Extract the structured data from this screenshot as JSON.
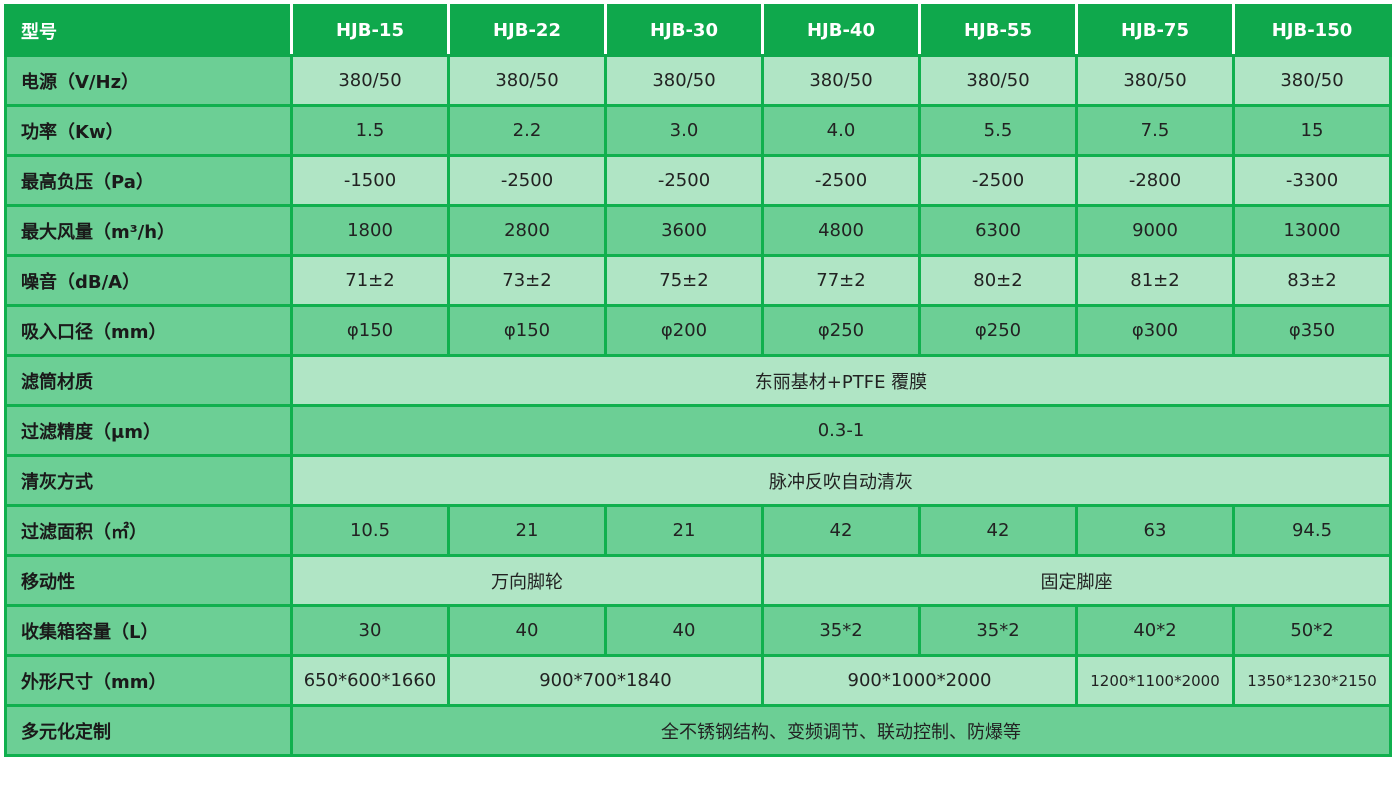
{
  "colors": {
    "header": "#0fa84c",
    "label": "#6ccf95",
    "light": "#b0e5c5",
    "dark": "#6ccf95",
    "grid": "#10b04e"
  },
  "header": {
    "label": "型号",
    "models": [
      "HJB-15",
      "HJB-22",
      "HJB-30",
      "HJB-40",
      "HJB-55",
      "HJB-75",
      "HJB-150"
    ]
  },
  "rows": [
    {
      "label": "电源（V/Hz）",
      "cells": [
        {
          "v": "380/50"
        },
        {
          "v": "380/50"
        },
        {
          "v": "380/50"
        },
        {
          "v": "380/50"
        },
        {
          "v": "380/50"
        },
        {
          "v": "380/50"
        },
        {
          "v": "380/50"
        }
      ]
    },
    {
      "label": "功率（Kw）",
      "cells": [
        {
          "v": "1.5"
        },
        {
          "v": "2.2"
        },
        {
          "v": "3.0"
        },
        {
          "v": "4.0"
        },
        {
          "v": "5.5"
        },
        {
          "v": "7.5"
        },
        {
          "v": "15"
        }
      ]
    },
    {
      "label": "最高负压（Pa）",
      "cells": [
        {
          "v": "-1500"
        },
        {
          "v": "-2500"
        },
        {
          "v": "-2500"
        },
        {
          "v": "-2500"
        },
        {
          "v": "-2500"
        },
        {
          "v": "-2800"
        },
        {
          "v": "-3300"
        }
      ]
    },
    {
      "label": "最大风量（m³/h）",
      "cells": [
        {
          "v": "1800"
        },
        {
          "v": "2800"
        },
        {
          "v": "3600"
        },
        {
          "v": "4800"
        },
        {
          "v": "6300"
        },
        {
          "v": "9000"
        },
        {
          "v": "13000"
        }
      ]
    },
    {
      "label": "噪音（dB/A）",
      "cells": [
        {
          "v": "71±2"
        },
        {
          "v": "73±2"
        },
        {
          "v": "75±2"
        },
        {
          "v": "77±2"
        },
        {
          "v": "80±2"
        },
        {
          "v": "81±2"
        },
        {
          "v": "83±2"
        }
      ]
    },
    {
      "label": "吸入口径（mm）",
      "cells": [
        {
          "v": "φ150"
        },
        {
          "v": "φ150"
        },
        {
          "v": "φ200"
        },
        {
          "v": "φ250"
        },
        {
          "v": "φ250"
        },
        {
          "v": "φ300"
        },
        {
          "v": "φ350"
        }
      ]
    },
    {
      "label": "滤筒材质",
      "cells": [
        {
          "v": "东丽基材+PTFE 覆膜",
          "span": 7
        }
      ]
    },
    {
      "label": "过滤精度（μm）",
      "cells": [
        {
          "v": "0.3-1",
          "span": 7
        }
      ]
    },
    {
      "label": "清灰方式",
      "cells": [
        {
          "v": "脉冲反吹自动清灰",
          "span": 7
        }
      ]
    },
    {
      "label": "过滤面积（㎡）",
      "cells": [
        {
          "v": "10.5"
        },
        {
          "v": "21"
        },
        {
          "v": "21"
        },
        {
          "v": "42"
        },
        {
          "v": "42"
        },
        {
          "v": "63"
        },
        {
          "v": "94.5"
        }
      ]
    },
    {
      "label": "移动性",
      "cells": [
        {
          "v": "万向脚轮",
          "span": 3
        },
        {
          "v": "固定脚座",
          "span": 4
        }
      ]
    },
    {
      "label": "收集箱容量（L）",
      "cells": [
        {
          "v": "30"
        },
        {
          "v": "40"
        },
        {
          "v": "40"
        },
        {
          "v": "35*2"
        },
        {
          "v": "35*2"
        },
        {
          "v": "40*2"
        },
        {
          "v": "50*2"
        }
      ]
    },
    {
      "label": "外形尺寸（mm）",
      "cells": [
        {
          "v": "650*600*1660"
        },
        {
          "v": "900*700*1840",
          "span": 2
        },
        {
          "v": "900*1000*2000",
          "span": 2
        },
        {
          "v": "1200*1100*2000",
          "small": true
        },
        {
          "v": "1350*1230*2150",
          "small": true
        }
      ]
    },
    {
      "label": "多元化定制",
      "cells": [
        {
          "v": "全不锈钢结构、变频调节、联动控制、防爆等",
          "span": 7
        }
      ]
    }
  ]
}
